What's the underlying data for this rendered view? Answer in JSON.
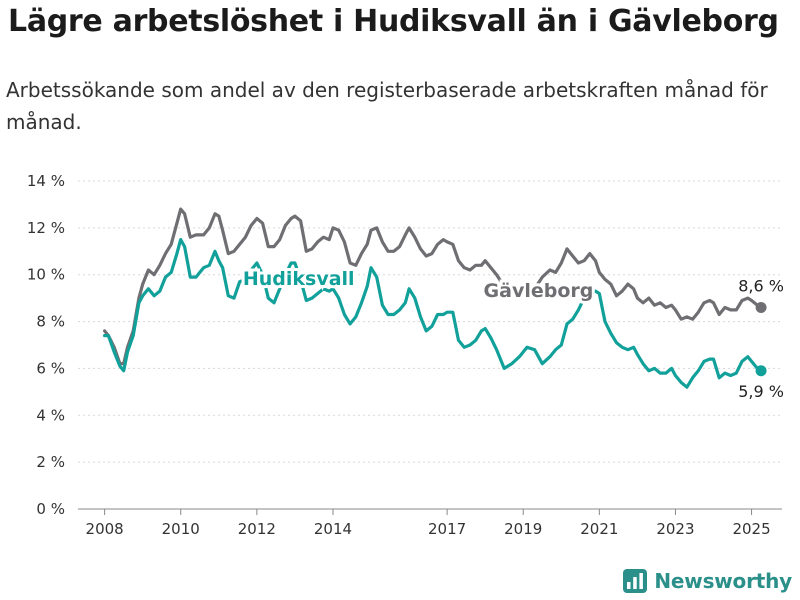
{
  "title": "Lägre arbetslöshet i Hudiksvall än i Gävleborg",
  "subtitle": "Arbetssökande som andel av den registerbaserade arbetskraften månad för månad.",
  "brand": {
    "name": "Newsworthy",
    "icon": "newsworthy-bar-chart-icon"
  },
  "chart_data": {
    "type": "line",
    "ylim": [
      0,
      14
    ],
    "yticks": [
      0,
      2,
      4,
      6,
      8,
      10,
      12,
      14
    ],
    "ytick_labels": [
      "0 %",
      "2 %",
      "4 %",
      "6 %",
      "8 %",
      "10 %",
      "12 %",
      "14 %"
    ],
    "xlim": [
      2007.3,
      2025.8
    ],
    "xticks": [
      2008,
      2010,
      2012,
      2014,
      2017,
      2019,
      2021,
      2023,
      2025
    ],
    "xtick_labels": [
      "2008",
      "2010",
      "2012",
      "2014",
      "2017",
      "2019",
      "2021",
      "2023",
      "2025"
    ],
    "grid": "horizontal",
    "series": [
      {
        "name": "Gävleborg",
        "color": "#6f6f73",
        "end_label": "8,6 %",
        "x": [
          2008.0,
          2008.1,
          2008.25,
          2008.4,
          2008.5,
          2008.6,
          2008.75,
          2008.9,
          2009.0,
          2009.15,
          2009.3,
          2009.45,
          2009.6,
          2009.75,
          2009.9,
          2010.0,
          2010.1,
          2010.25,
          2010.4,
          2010.5,
          2010.6,
          2010.75,
          2010.9,
          2011.0,
          2011.1,
          2011.25,
          2011.4,
          2011.55,
          2011.7,
          2011.85,
          2012.0,
          2012.15,
          2012.3,
          2012.45,
          2012.6,
          2012.75,
          2012.9,
          2013.0,
          2013.15,
          2013.3,
          2013.45,
          2013.6,
          2013.75,
          2013.9,
          2014.0,
          2014.15,
          2014.3,
          2014.45,
          2014.6,
          2014.75,
          2014.9,
          2015.0,
          2015.15,
          2015.3,
          2015.45,
          2015.6,
          2015.75,
          2015.9,
          2016.0,
          2016.15,
          2016.3,
          2016.45,
          2016.6,
          2016.75,
          2016.9,
          2017.0,
          2017.15,
          2017.3,
          2017.45,
          2017.6,
          2017.75,
          2017.9,
          2018.0,
          2018.15,
          2018.3,
          2018.5,
          2018.7,
          2018.9,
          2019.1,
          2019.3,
          2019.5,
          2019.7,
          2019.85,
          2020.0,
          2020.15,
          2020.3,
          2020.45,
          2020.6,
          2020.75,
          2020.9,
          2021.0,
          2021.15,
          2021.3,
          2021.45,
          2021.6,
          2021.75,
          2021.9,
          2022.0,
          2022.15,
          2022.3,
          2022.45,
          2022.6,
          2022.75,
          2022.9,
          2023.0,
          2023.15,
          2023.3,
          2023.45,
          2023.6,
          2023.75,
          2023.9,
          2024.0,
          2024.15,
          2024.3,
          2024.45,
          2024.6,
          2024.75,
          2024.9,
          2025.0,
          2025.15,
          2025.25
        ],
        "y": [
          7.6,
          7.4,
          6.9,
          6.2,
          6.2,
          6.9,
          7.6,
          9.0,
          9.6,
          10.2,
          10.0,
          10.4,
          10.9,
          11.3,
          12.2,
          12.8,
          12.6,
          11.6,
          11.7,
          11.7,
          11.7,
          12.0,
          12.6,
          12.5,
          11.9,
          10.9,
          11.0,
          11.3,
          11.6,
          12.1,
          12.4,
          12.2,
          11.2,
          11.2,
          11.5,
          12.1,
          12.4,
          12.5,
          12.3,
          11.0,
          11.1,
          11.4,
          11.6,
          11.5,
          12.0,
          11.9,
          11.4,
          10.5,
          10.4,
          10.9,
          11.3,
          11.9,
          12.0,
          11.4,
          11.0,
          11.0,
          11.2,
          11.7,
          12.0,
          11.6,
          11.1,
          10.8,
          10.9,
          11.3,
          11.5,
          11.4,
          11.3,
          10.6,
          10.3,
          10.2,
          10.4,
          10.4,
          10.6,
          10.3,
          10.0,
          9.5,
          9.1,
          9.4,
          9.7,
          9.4,
          9.9,
          10.2,
          10.1,
          10.5,
          11.1,
          10.8,
          10.5,
          10.6,
          10.9,
          10.6,
          10.1,
          9.8,
          9.6,
          9.1,
          9.3,
          9.6,
          9.4,
          9.0,
          8.8,
          9.0,
          8.7,
          8.8,
          8.6,
          8.7,
          8.5,
          8.1,
          8.2,
          8.1,
          8.4,
          8.8,
          8.9,
          8.8,
          8.3,
          8.6,
          8.5,
          8.5,
          8.9,
          9.0,
          8.9,
          8.7,
          8.6
        ]
      },
      {
        "name": "Hudiksvall",
        "color": "#12a19a",
        "end_label": "5,9 %",
        "x": [
          2008.0,
          2008.1,
          2008.25,
          2008.4,
          2008.5,
          2008.6,
          2008.75,
          2008.9,
          2009.0,
          2009.15,
          2009.3,
          2009.45,
          2009.6,
          2009.75,
          2009.9,
          2010.0,
          2010.1,
          2010.25,
          2010.4,
          2010.5,
          2010.6,
          2010.75,
          2010.9,
          2011.0,
          2011.1,
          2011.25,
          2011.4,
          2011.55,
          2011.7,
          2011.85,
          2012.0,
          2012.15,
          2012.3,
          2012.45,
          2012.6,
          2012.75,
          2012.9,
          2013.0,
          2013.15,
          2013.3,
          2013.45,
          2013.6,
          2013.75,
          2013.9,
          2014.0,
          2014.15,
          2014.3,
          2014.45,
          2014.6,
          2014.75,
          2014.9,
          2015.0,
          2015.15,
          2015.3,
          2015.45,
          2015.6,
          2015.75,
          2015.9,
          2016.0,
          2016.15,
          2016.3,
          2016.45,
          2016.6,
          2016.75,
          2016.9,
          2017.0,
          2017.15,
          2017.3,
          2017.45,
          2017.6,
          2017.75,
          2017.9,
          2018.0,
          2018.15,
          2018.3,
          2018.5,
          2018.7,
          2018.9,
          2019.1,
          2019.3,
          2019.5,
          2019.7,
          2019.85,
          2020.0,
          2020.15,
          2020.3,
          2020.45,
          2020.6,
          2020.75,
          2020.9,
          2021.0,
          2021.15,
          2021.3,
          2021.45,
          2021.6,
          2021.75,
          2021.9,
          2022.0,
          2022.15,
          2022.3,
          2022.45,
          2022.6,
          2022.75,
          2022.9,
          2023.0,
          2023.15,
          2023.3,
          2023.45,
          2023.6,
          2023.75,
          2023.9,
          2024.0,
          2024.15,
          2024.3,
          2024.45,
          2024.6,
          2024.75,
          2024.9,
          2025.0,
          2025.15,
          2025.25
        ],
        "y": [
          7.4,
          7.4,
          6.7,
          6.1,
          5.9,
          6.7,
          7.4,
          8.8,
          9.1,
          9.4,
          9.1,
          9.3,
          9.9,
          10.1,
          10.9,
          11.5,
          11.2,
          9.9,
          9.9,
          10.1,
          10.3,
          10.4,
          11.0,
          10.6,
          10.3,
          9.1,
          9.0,
          9.7,
          9.8,
          10.2,
          10.5,
          10.0,
          9.0,
          8.8,
          9.4,
          10.0,
          10.5,
          10.5,
          9.8,
          8.9,
          9.0,
          9.2,
          9.4,
          9.3,
          9.4,
          9.0,
          8.3,
          7.9,
          8.2,
          8.8,
          9.5,
          10.3,
          9.9,
          8.7,
          8.3,
          8.3,
          8.5,
          8.8,
          9.4,
          9.0,
          8.2,
          7.6,
          7.8,
          8.3,
          8.3,
          8.4,
          8.4,
          7.2,
          6.9,
          7.0,
          7.2,
          7.6,
          7.7,
          7.3,
          6.8,
          6.0,
          6.2,
          6.5,
          6.9,
          6.8,
          6.2,
          6.5,
          6.8,
          7.0,
          7.9,
          8.1,
          8.5,
          9.0,
          9.2,
          9.3,
          9.2,
          8.0,
          7.5,
          7.1,
          6.9,
          6.8,
          6.9,
          6.6,
          6.2,
          5.9,
          6.0,
          5.8,
          5.8,
          6.0,
          5.7,
          5.4,
          5.2,
          5.6,
          5.9,
          6.3,
          6.4,
          6.4,
          5.6,
          5.8,
          5.7,
          5.8,
          6.3,
          6.5,
          6.3,
          6.0,
          5.9
        ]
      }
    ]
  }
}
